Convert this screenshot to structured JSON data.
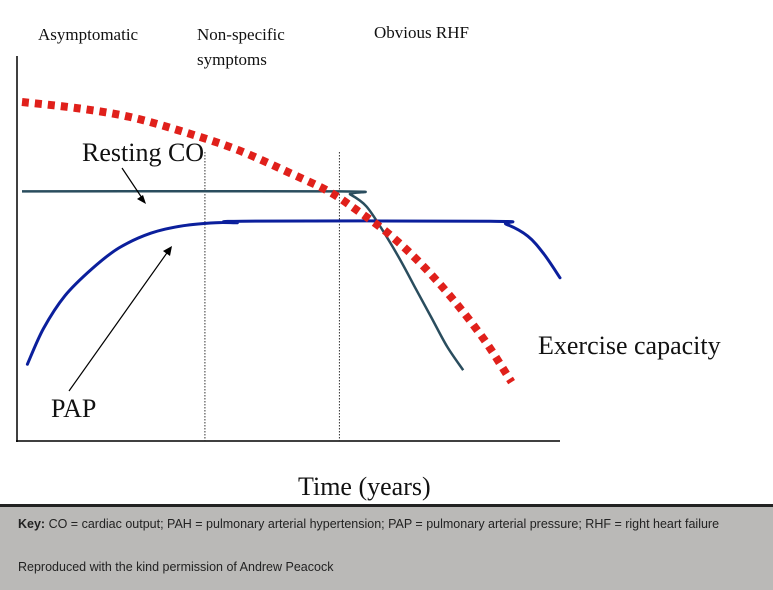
{
  "stages": {
    "asymptomatic": "Asymptomatic",
    "non_specific_line1": "Non-specific",
    "non_specific_line2": "symptoms",
    "obvious": "Obvious RHF"
  },
  "labels": {
    "resting_co": "Resting CO",
    "pap": "PAP",
    "exercise_capacity": "Exercise capacity",
    "xlabel": "Time (years)"
  },
  "colors": {
    "exercise_capacity": "#e0201b",
    "resting_co": "#2a4d5e",
    "pap": "#0b1f9c",
    "axis": "#000000"
  },
  "chart_data": {
    "type": "line",
    "title": "",
    "xlabel": "Time (years)",
    "ylabel": "",
    "xlim": [
      0,
      100
    ],
    "ylim": [
      0,
      100
    ],
    "stage_boundaries": [
      34,
      59
    ],
    "series": [
      {
        "name": "Exercise capacity",
        "style": "dotted",
        "x": [
          0,
          10,
          20,
          30,
          40,
          50,
          57,
          62,
          68,
          74,
          80,
          86,
          91
        ],
        "y": [
          100,
          98,
          95,
          90,
          84,
          76,
          70,
          64,
          56,
          46,
          34,
          20,
          6
        ]
      },
      {
        "name": "Resting CO",
        "style": "solid",
        "x": [
          0,
          59,
          61,
          64,
          67,
          70,
          73,
          76,
          79,
          82
        ],
        "y": [
          70,
          70,
          69,
          65,
          57,
          48,
          38,
          28,
          18,
          10
        ]
      },
      {
        "name": "PAP",
        "style": "solid",
        "x": [
          1,
          4,
          8,
          13,
          18,
          24,
          30,
          36,
          40,
          41,
          87,
          90,
          94,
          97,
          100
        ],
        "y": [
          12,
          24,
          35,
          44,
          51,
          56,
          58.5,
          59.5,
          59.5,
          60,
          60,
          59,
          55,
          49,
          41
        ]
      }
    ]
  },
  "footer": {
    "key_label": "Key:",
    "key_text": "CO = cardiac output; PAH = pulmonary arterial hypertension; PAP = pulmonary arterial pressure; RHF = right heart failure",
    "credit": "Reproduced with the kind permission of Andrew Peacock"
  }
}
